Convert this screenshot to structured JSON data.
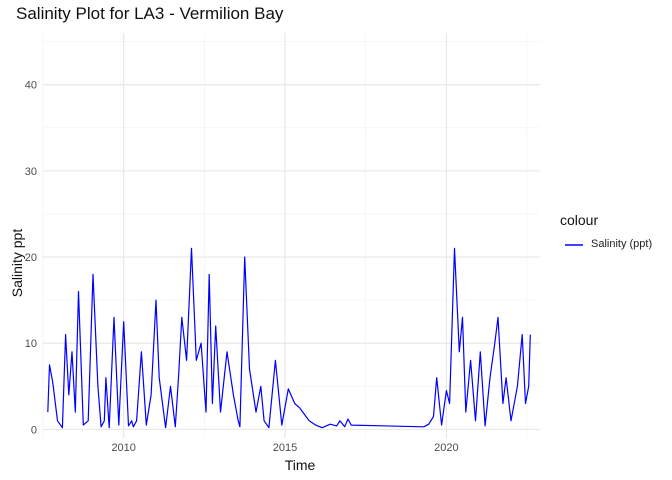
{
  "chart_data": {
    "type": "line",
    "title": "Salinity Plot for LA3 - Vermilion Bay",
    "xlabel": "Time",
    "ylabel": "Salinity ppt",
    "legend_title": "colour",
    "legend_position": "right",
    "grid": true,
    "xlim": [
      2007.5,
      2022.9
    ],
    "ylim": [
      -1,
      46
    ],
    "x_ticks": [
      2010,
      2015,
      2020
    ],
    "x_tick_labels": [
      "2010",
      "2015",
      "2020"
    ],
    "y_ticks": [
      0,
      10,
      20,
      30,
      40
    ],
    "y_tick_labels": [
      "0",
      "10",
      "20",
      "30",
      "40"
    ],
    "series": [
      {
        "name": "Salinity (ppt)",
        "color": "#0000FF",
        "x": [
          2007.65,
          2007.7,
          2007.8,
          2007.95,
          2008.1,
          2008.2,
          2008.3,
          2008.4,
          2008.5,
          2008.6,
          2008.75,
          2008.9,
          2009.05,
          2009.2,
          2009.3,
          2009.4,
          2009.45,
          2009.55,
          2009.7,
          2009.85,
          2010.0,
          2010.15,
          2010.25,
          2010.3,
          2010.4,
          2010.55,
          2010.7,
          2010.85,
          2011.0,
          2011.1,
          2011.3,
          2011.45,
          2011.6,
          2011.7,
          2011.8,
          2011.95,
          2012.1,
          2012.25,
          2012.4,
          2012.55,
          2012.65,
          2012.75,
          2012.85,
          2013.0,
          2013.2,
          2013.4,
          2013.55,
          2013.6,
          2013.75,
          2013.9,
          2014.1,
          2014.25,
          2014.35,
          2014.5,
          2014.7,
          2014.9,
          2015.1,
          2015.3,
          2015.45,
          2015.55,
          2015.65,
          2015.75,
          2015.95,
          2016.15,
          2016.4,
          2016.6,
          2016.7,
          2016.85,
          2016.95,
          2017.05,
          2019.3,
          2019.45,
          2019.6,
          2019.7,
          2019.85,
          2020.0,
          2020.1,
          2020.25,
          2020.4,
          2020.5,
          2020.6,
          2020.75,
          2020.9,
          2021.05,
          2021.2,
          2021.35,
          2021.5,
          2021.6,
          2021.75,
          2021.85,
          2022.0,
          2022.2,
          2022.35,
          2022.45,
          2022.55,
          2022.6
        ],
        "y": [
          2.0,
          7.5,
          5.5,
          1.0,
          0.2,
          11.0,
          4.0,
          9.0,
          2.0,
          16.0,
          0.5,
          1.0,
          18.0,
          5.0,
          0.3,
          1.0,
          6.0,
          0.2,
          13.0,
          0.5,
          12.5,
          0.4,
          1.0,
          0.3,
          1.0,
          9.0,
          0.5,
          4.0,
          15.0,
          6.0,
          0.2,
          5.0,
          0.3,
          6.0,
          13.0,
          8.0,
          21.0,
          8.0,
          10.0,
          2.0,
          18.0,
          3.0,
          12.0,
          2.0,
          9.0,
          4.0,
          1.0,
          0.3,
          20.0,
          7.0,
          2.0,
          5.0,
          1.0,
          0.2,
          8.0,
          0.5,
          4.7,
          3.0,
          2.5,
          2.0,
          1.5,
          1.0,
          0.5,
          0.2,
          0.6,
          0.4,
          1.0,
          0.3,
          1.2,
          0.5,
          0.3,
          0.6,
          1.5,
          6.0,
          0.5,
          4.5,
          3.0,
          21.0,
          9.0,
          13.0,
          2.0,
          8.0,
          1.0,
          9.0,
          0.4,
          6.0,
          10.0,
          13.0,
          3.0,
          6.0,
          1.0,
          5.0,
          11.0,
          3.0,
          5.0,
          11.0
        ]
      }
    ]
  }
}
